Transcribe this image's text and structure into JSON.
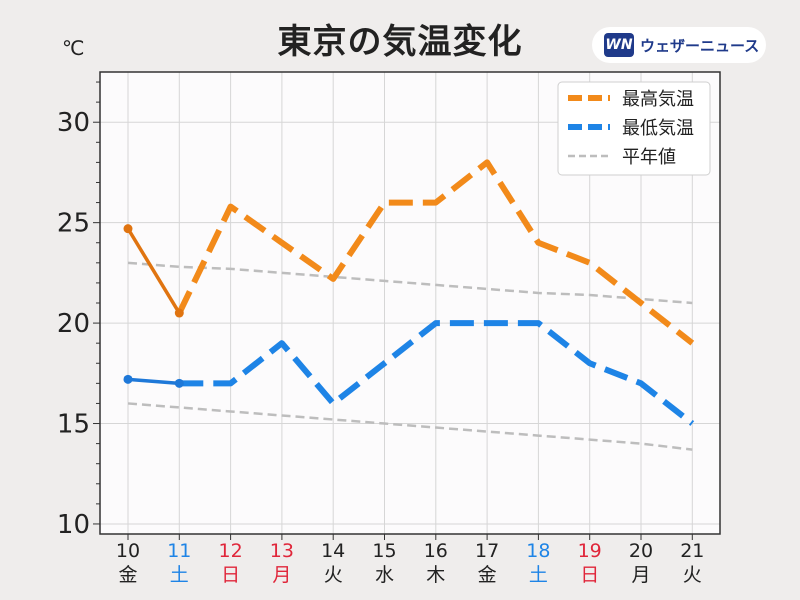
{
  "brand": {
    "logo_text": "WN",
    "name": "ウェザーニュース",
    "icon": "weathernews-logo-icon"
  },
  "colors": {
    "background": "#efedec",
    "plot_bg": "#fcfbfc",
    "high": "#f28a1a",
    "high_observed": "#e07410",
    "low": "#1e84e6",
    "low_observed": "#1e78d8",
    "normal": "#bdbdbd",
    "weekday": "#222222",
    "saturday": "#1e84e6",
    "sunday_holiday": "#e0263a"
  },
  "chart_data": {
    "type": "line",
    "title": "東京の気温変化",
    "ylabel": "℃",
    "ylim": [
      9.5,
      32.5
    ],
    "yticks": [
      10,
      15,
      20,
      25,
      30
    ],
    "grid": true,
    "legend_position": "top-right",
    "categories": [
      {
        "day": "10",
        "weekday": "金",
        "kind": "weekday"
      },
      {
        "day": "11",
        "weekday": "土",
        "kind": "saturday"
      },
      {
        "day": "12",
        "weekday": "日",
        "kind": "sunday_holiday"
      },
      {
        "day": "13",
        "weekday": "月",
        "kind": "sunday_holiday"
      },
      {
        "day": "14",
        "weekday": "火",
        "kind": "weekday"
      },
      {
        "day": "15",
        "weekday": "水",
        "kind": "weekday"
      },
      {
        "day": "16",
        "weekday": "木",
        "kind": "weekday"
      },
      {
        "day": "17",
        "weekday": "金",
        "kind": "weekday"
      },
      {
        "day": "18",
        "weekday": "土",
        "kind": "saturday"
      },
      {
        "day": "19",
        "weekday": "日",
        "kind": "sunday_holiday"
      },
      {
        "day": "20",
        "weekday": "月",
        "kind": "weekday"
      },
      {
        "day": "21",
        "weekday": "火",
        "kind": "weekday"
      }
    ],
    "series": [
      {
        "name": "最高気温",
        "key": "high",
        "observed": [
          24.7,
          20.5
        ],
        "values": [
          24.7,
          20.5,
          25.8,
          24.0,
          22.2,
          26.0,
          26.0,
          28.0,
          24.0,
          23.0,
          21.0,
          19.0
        ]
      },
      {
        "name": "最低気温",
        "key": "low",
        "observed": [
          17.2,
          17.0
        ],
        "values": [
          17.2,
          17.0,
          17.0,
          19.0,
          16.0,
          18.0,
          20.0,
          20.0,
          20.0,
          18.0,
          17.0,
          15.0
        ]
      },
      {
        "name": "平年値",
        "key": "normal",
        "normal_high": [
          23.0,
          22.8,
          22.7,
          22.5,
          22.3,
          22.1,
          21.9,
          21.7,
          21.5,
          21.4,
          21.2,
          21.0
        ],
        "normal_low": [
          16.0,
          15.8,
          15.6,
          15.4,
          15.2,
          15.0,
          14.8,
          14.6,
          14.4,
          14.2,
          14.0,
          13.7
        ]
      }
    ]
  }
}
